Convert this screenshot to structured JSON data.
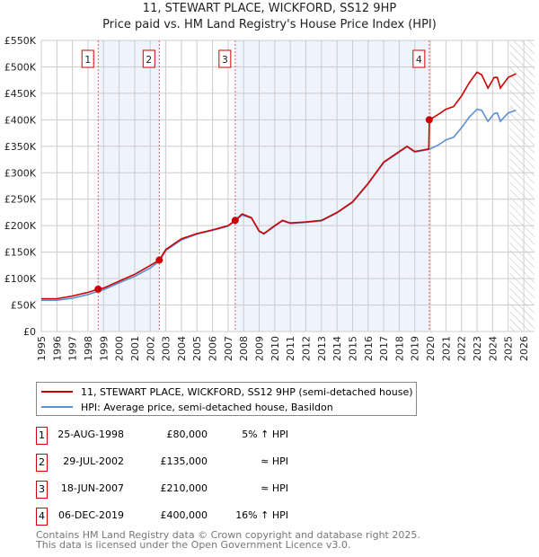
{
  "chart_data": {
    "type": "line",
    "title": "11, STEWART PLACE, WICKFORD, SS12 9HP",
    "subtitle": "Price paid vs. HM Land Registry's House Price Index (HPI)",
    "xlim": [
      1995,
      2026
    ],
    "ylim": [
      0,
      550000
    ],
    "x_ticks": [
      "1995",
      "1996",
      "1997",
      "1998",
      "1999",
      "2000",
      "2001",
      "2002",
      "2003",
      "2004",
      "2005",
      "2006",
      "2007",
      "2008",
      "2009",
      "2010",
      "2011",
      "2012",
      "2013",
      "2014",
      "2015",
      "2016",
      "2017",
      "2018",
      "2019",
      "2020",
      "2021",
      "2022",
      "2023",
      "2024",
      "2025",
      "2026"
    ],
    "y_ticks": [
      {
        "v": 0,
        "label": "£0"
      },
      {
        "v": 50000,
        "label": "£50K"
      },
      {
        "v": 100000,
        "label": "£100K"
      },
      {
        "v": 150000,
        "label": "£150K"
      },
      {
        "v": 200000,
        "label": "£200K"
      },
      {
        "v": 250000,
        "label": "£250K"
      },
      {
        "v": 300000,
        "label": "£300K"
      },
      {
        "v": 350000,
        "label": "£350K"
      },
      {
        "v": 400000,
        "label": "£400K"
      },
      {
        "v": 450000,
        "label": "£450K"
      },
      {
        "v": 500000,
        "label": "£500K"
      },
      {
        "v": 550000,
        "label": "£550K"
      }
    ],
    "grid": true,
    "forecast_hatch_from": 2025.1,
    "shaded_ranges": [
      [
        1998.65,
        2002.58
      ],
      [
        2007.46,
        2019.93
      ]
    ],
    "series": [
      {
        "name": "11, STEWART PLACE, WICKFORD, SS12 9HP (semi-detached house)",
        "color": "#cc0000",
        "x": [
          1995,
          1996,
          1997,
          1998,
          1998.65,
          1999,
          2000,
          2001,
          2002,
          2002.58,
          2003,
          2004,
          2005,
          2006,
          2007,
          2007.46,
          2007.9,
          2008.5,
          2009,
          2009.3,
          2010,
          2010.5,
          2011,
          2012,
          2013,
          2014,
          2015,
          2016,
          2017,
          2018,
          2018.5,
          2019,
          2019.9,
          2019.93,
          2020.5,
          2021,
          2021.5,
          2022,
          2022.5,
          2023,
          2023.3,
          2023.7,
          2024.1,
          2024.3,
          2024.5,
          2025,
          2025.5
        ],
        "y": [
          62000,
          62000,
          67000,
          74000,
          80000,
          82000,
          95000,
          108000,
          125000,
          135000,
          155000,
          175000,
          185000,
          192000,
          200000,
          210000,
          222000,
          215000,
          190000,
          185000,
          200000,
          210000,
          205000,
          207000,
          210000,
          225000,
          245000,
          280000,
          320000,
          340000,
          350000,
          340000,
          345000,
          400000,
          410000,
          420000,
          425000,
          445000,
          470000,
          490000,
          485000,
          460000,
          480000,
          480000,
          460000,
          480000,
          487000
        ]
      },
      {
        "name": "HPI: Average price, semi-detached house, Basildon",
        "color": "#5b8fd6",
        "x": [
          1995,
          1996,
          1997,
          1998,
          1998.65,
          1999,
          2000,
          2001,
          2002,
          2002.58,
          2003,
          2004,
          2005,
          2006,
          2007,
          2007.46,
          2007.9,
          2008.5,
          2009,
          2009.3,
          2010,
          2010.5,
          2011,
          2012,
          2013,
          2014,
          2015,
          2016,
          2017,
          2018,
          2018.5,
          2019,
          2019.9,
          2020.5,
          2021,
          2021.5,
          2022,
          2022.5,
          2023,
          2023.3,
          2023.7,
          2024.1,
          2024.3,
          2024.5,
          2025,
          2025.5
        ],
        "y": [
          59000,
          59000,
          63000,
          70000,
          76000,
          79000,
          92000,
          104000,
          120000,
          133000,
          153000,
          173000,
          184000,
          191000,
          199000,
          209000,
          220000,
          214000,
          189000,
          184000,
          199000,
          209000,
          204000,
          206000,
          209000,
          224000,
          244000,
          279000,
          319000,
          339000,
          349000,
          339000,
          344000,
          352000,
          362000,
          367000,
          385000,
          405000,
          420000,
          418000,
          397000,
          412000,
          413000,
          397000,
          413000,
          418000
        ]
      }
    ],
    "transactions": [
      {
        "n": "1",
        "date": "25-AUG-1998",
        "x": 1998.65,
        "price": "£80,000",
        "value": 80000,
        "vs_hpi": "5% ↑ HPI"
      },
      {
        "n": "2",
        "date": "29-JUL-2002",
        "x": 2002.58,
        "price": "£135,000",
        "value": 135000,
        "vs_hpi": "≈ HPI"
      },
      {
        "n": "3",
        "date": "18-JUN-2007",
        "x": 2007.46,
        "price": "£210,000",
        "value": 210000,
        "vs_hpi": "≈ HPI"
      },
      {
        "n": "4",
        "date": "06-DEC-2019",
        "x": 2019.93,
        "price": "£400,000",
        "value": 400000,
        "vs_hpi": "16% ↑ HPI"
      }
    ]
  },
  "legend": {
    "red": "11, STEWART PLACE, WICKFORD, SS12 9HP (semi-detached house)",
    "blue": "HPI: Average price, semi-detached house, Basildon"
  },
  "footer": {
    "line1": "Contains HM Land Registry data © Crown copyright and database right 2025.",
    "line2": "This data is licensed under the Open Government Licence v3.0."
  }
}
